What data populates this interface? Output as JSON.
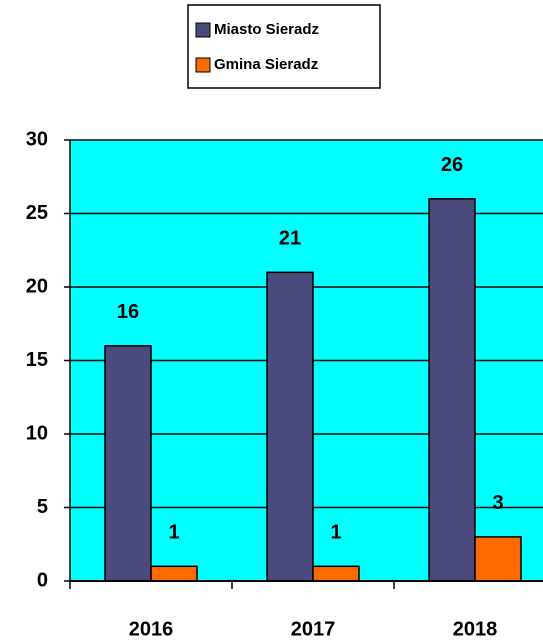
{
  "chart_data": {
    "type": "bar",
    "categories": [
      "2016",
      "2017",
      "2018"
    ],
    "series": [
      {
        "name": "Miasto Sieradz",
        "color": "#4a4a7c",
        "values": [
          16,
          21,
          26
        ]
      },
      {
        "name": "Gmina Sieradz",
        "color": "#ff6a00",
        "values": [
          1,
          1,
          3
        ]
      }
    ],
    "ylim": [
      0,
      30
    ],
    "yticks": [
      0,
      5,
      10,
      15,
      20,
      25,
      30
    ],
    "grid": true,
    "plot_background": "#00ffff",
    "legend": "top"
  }
}
